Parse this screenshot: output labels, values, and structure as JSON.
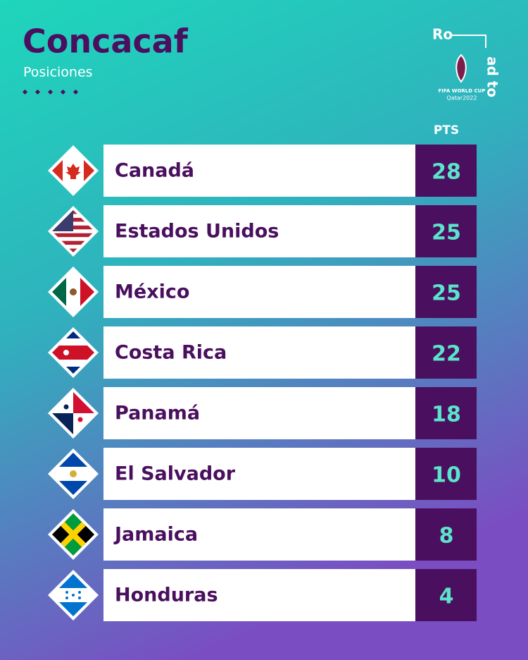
{
  "header": {
    "title": "Concacaf",
    "subtitle": "Posiciones"
  },
  "logo": {
    "text_top": "Ro",
    "text_side": "ad to",
    "event": "FIFA WORLD CUP",
    "edition": "Qatar2022"
  },
  "table": {
    "column_header": "PTS",
    "rows": [
      {
        "team": "Canadá",
        "points": 28
      },
      {
        "team": "Estados Unidos",
        "points": 25
      },
      {
        "team": "México",
        "points": 25
      },
      {
        "team": "Costa Rica",
        "points": 22
      },
      {
        "team": "Panamá",
        "points": 18
      },
      {
        "team": "El Salvador",
        "points": 10
      },
      {
        "team": "Jamaica",
        "points": 8
      },
      {
        "team": "Honduras",
        "points": 4
      }
    ]
  }
}
